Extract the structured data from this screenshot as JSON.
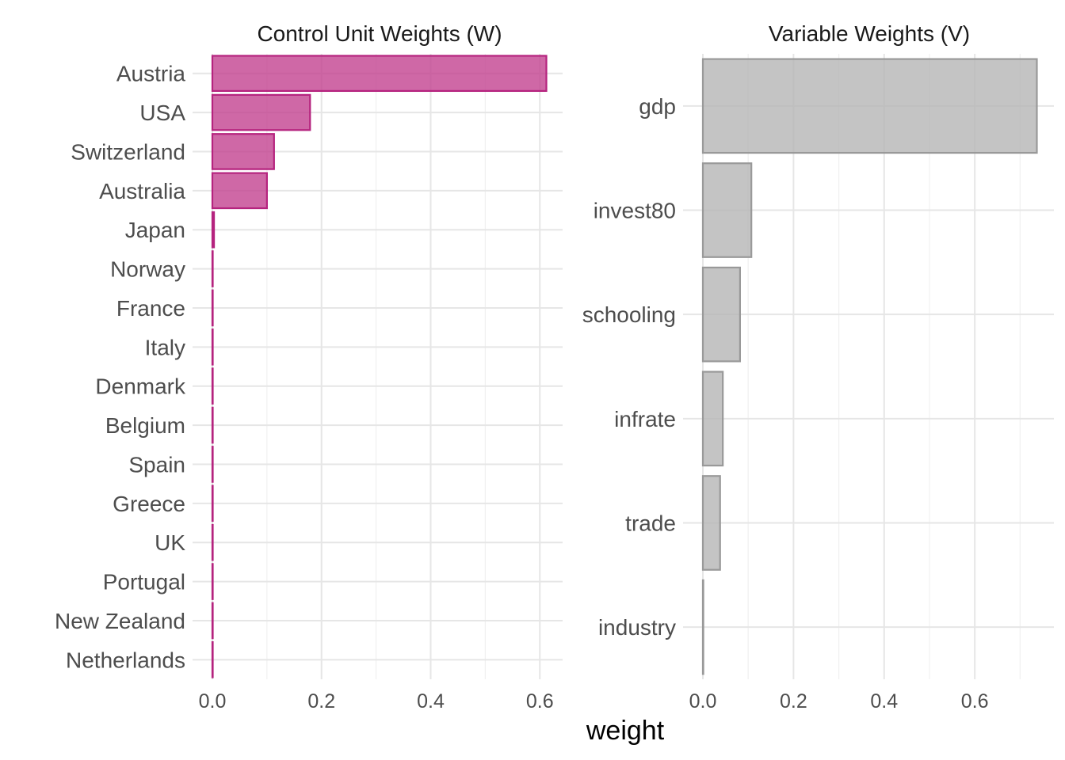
{
  "chart_data": [
    {
      "type": "bar",
      "orientation": "horizontal",
      "title": "Control Unit Weights (W)",
      "xlabel": "weight",
      "ylabel": "",
      "xlim": [
        0,
        0.64
      ],
      "x_ticks": [
        "0.0",
        "0.2",
        "0.4",
        "0.6"
      ],
      "x_tick_values": [
        0,
        0.2,
        0.4,
        0.6
      ],
      "grid": true,
      "bar_color": "#C13D8D",
      "bar_edge_color": "#B5237E",
      "categories": [
        "Austria",
        "USA",
        "Switzerland",
        "Australia",
        "Japan",
        "Norway",
        "France",
        "Italy",
        "Denmark",
        "Belgium",
        "Spain",
        "Greece",
        "UK",
        "Portugal",
        "New Zealand",
        "Netherlands"
      ],
      "values": [
        0.612,
        0.179,
        0.113,
        0.1,
        0.003,
        0.0005,
        0.0005,
        0.0005,
        0.0005,
        0.0005,
        0.0005,
        0.0005,
        0.0005,
        0.0005,
        0.0005,
        0.0005
      ]
    },
    {
      "type": "bar",
      "orientation": "horizontal",
      "title": "Variable Weights (V)",
      "xlabel": "weight",
      "ylabel": "",
      "xlim": [
        0,
        0.77
      ],
      "x_ticks": [
        "0.0",
        "0.2",
        "0.4",
        "0.6"
      ],
      "x_tick_values": [
        0,
        0.2,
        0.4,
        0.6
      ],
      "grid": true,
      "bar_color": "#B3B3B3",
      "bar_edge_color": "#999999",
      "categories": [
        "gdp",
        "invest80",
        "schooling",
        "infrate",
        "trade",
        "industry"
      ],
      "values": [
        0.737,
        0.107,
        0.082,
        0.044,
        0.038,
        0.001
      ]
    }
  ],
  "shared_xlabel": "weight"
}
